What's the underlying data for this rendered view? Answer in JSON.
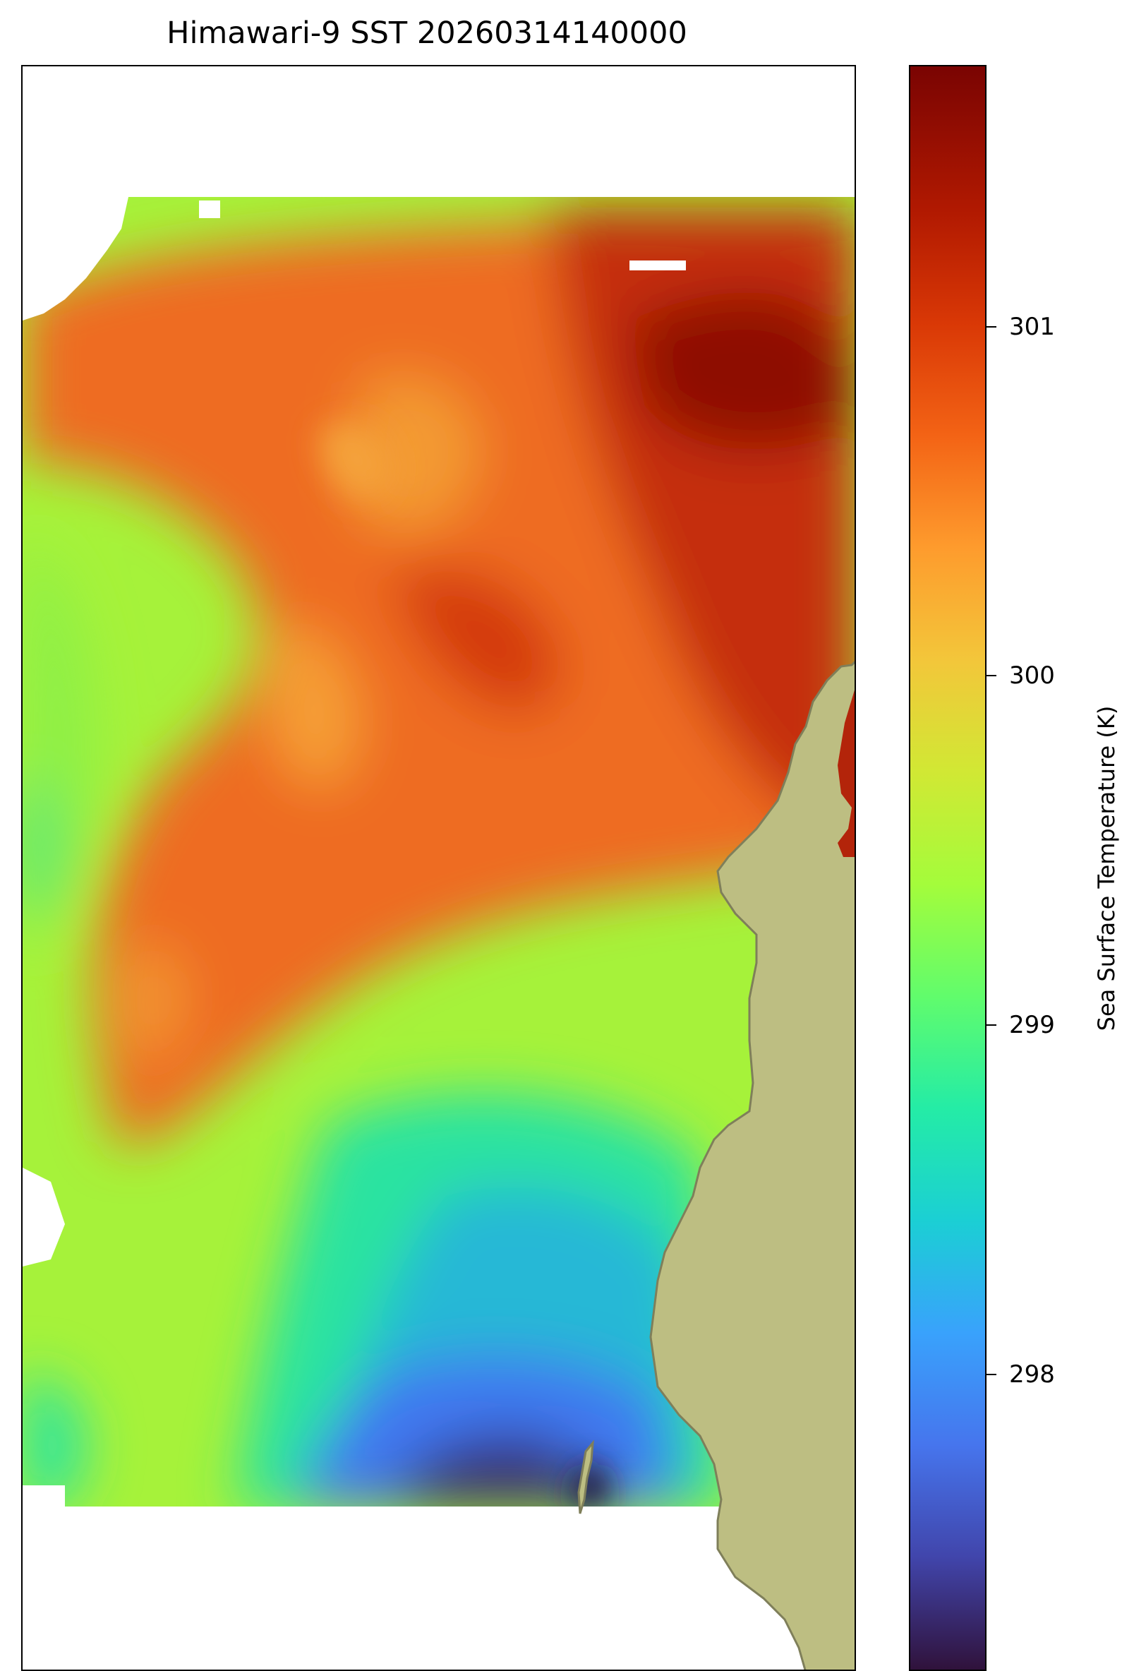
{
  "chart_data": {
    "type": "heatmap",
    "title": "Himawari-9 SST 20260314140000",
    "colorbar": {
      "label": "Sea Surface Temperature (K)",
      "ticks": [
        "301",
        "300",
        "299",
        "298"
      ],
      "tick_values": [
        301,
        300,
        299,
        298
      ],
      "range": [
        297.15,
        301.75
      ],
      "colormap": "turbo"
    },
    "land_color": "#bdbe82",
    "coast_color": "#7f7f5a"
  }
}
